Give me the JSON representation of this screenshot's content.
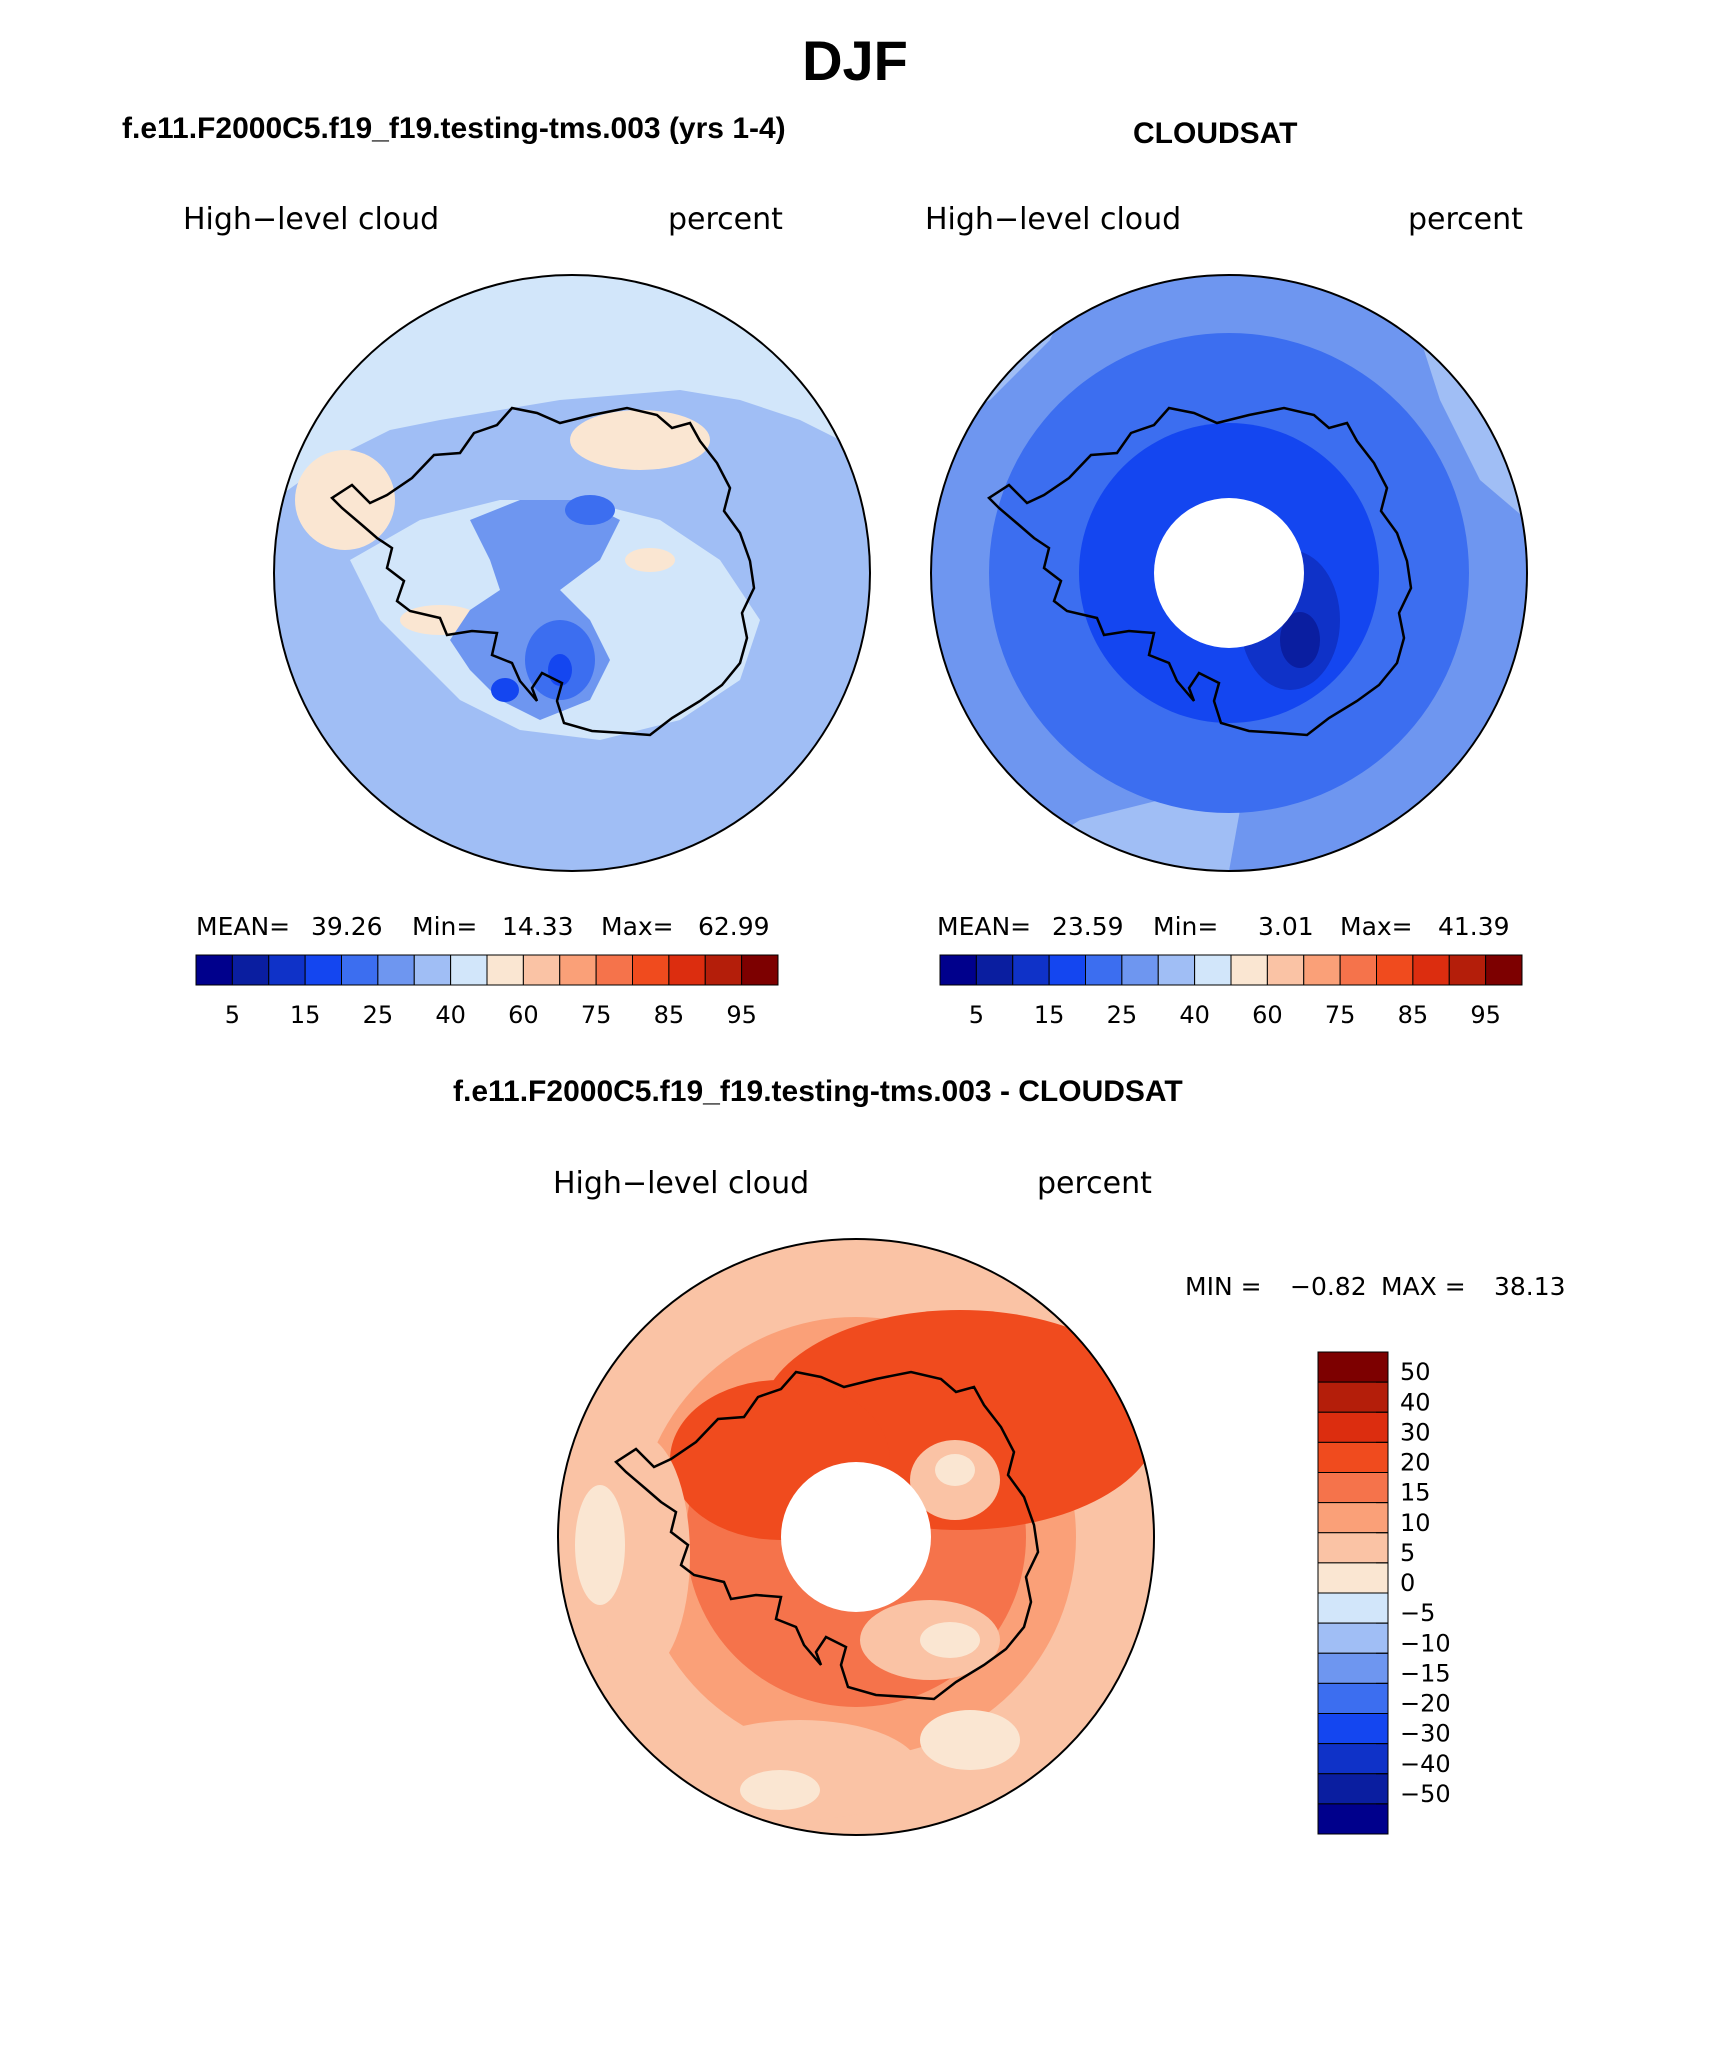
{
  "title": "DJF",
  "panels": [
    {
      "case_name": "f.e11.F2000C5.f19_f19.testing-tms.003 (yrs 1-4)",
      "variable": "High−level cloud",
      "units": "percent",
      "stats": {
        "mean_label": "MEAN=",
        "mean": "39.26",
        "min_label": "Min=",
        "min": "14.33",
        "max_label": "Max=",
        "max": "62.99"
      }
    },
    {
      "case_name": "CLOUDSAT",
      "variable": "High−level cloud",
      "units": "percent",
      "stats": {
        "mean_label": "MEAN=",
        "mean": "23.59",
        "min_label": "Min=",
        "min": "3.01",
        "max_label": "Max=",
        "max": "41.39"
      }
    }
  ],
  "abs_colorbar": {
    "colors": [
      "#00008c",
      "#0a1ea0",
      "#0f32c8",
      "#1446f0",
      "#3c6ef0",
      "#6e96f0",
      "#a0bef5",
      "#d2e6fa",
      "#fae6d2",
      "#fac3a5",
      "#faa078",
      "#f5734b",
      "#f04b1e",
      "#dc2d0f",
      "#b41e0a",
      "#7d0000"
    ],
    "tick_labels": [
      "5",
      "15",
      "25",
      "40",
      "60",
      "75",
      "85",
      "95"
    ]
  },
  "diff_panel": {
    "title": "f.e11.F2000C5.f19_f19.testing-tms.003 - CLOUDSAT",
    "variable": "High−level cloud",
    "units": "percent",
    "stats": {
      "min_label": "MIN =",
      "min": "−0.82",
      "max_label": "MAX =",
      "max": "38.13"
    }
  },
  "diff_colorbar": {
    "colors": [
      "#7d0000",
      "#b41e0a",
      "#dc2d0f",
      "#f04b1e",
      "#f5734b",
      "#faa078",
      "#fac3a5",
      "#fae6d2",
      "#d2e6fa",
      "#a0bef5",
      "#6e96f0",
      "#3c6ef0",
      "#1446f0",
      "#0f32c8",
      "#0a1ea0",
      "#00008c"
    ],
    "tick_labels": [
      "50",
      "40",
      "30",
      "20",
      "15",
      "10",
      "5",
      "0",
      "−5",
      "−10",
      "−15",
      "−20",
      "−30",
      "−40",
      "−50"
    ]
  },
  "chart_data": [
    {
      "type": "heatmap",
      "title": "f.e11.F2000C5.f19_f19.testing-tms.003 (yrs 1-4)",
      "variable": "High−level cloud",
      "units": "percent",
      "projection": "south polar stereographic",
      "mean": 39.26,
      "min": 14.33,
      "max": 62.99,
      "levels": [
        5,
        10,
        15,
        20,
        25,
        30,
        40,
        50,
        60,
        70,
        75,
        80,
        85,
        90,
        95
      ]
    },
    {
      "type": "heatmap",
      "title": "CLOUDSAT",
      "variable": "High−level cloud",
      "units": "percent",
      "projection": "south polar stereographic",
      "mean": 23.59,
      "min": 3.01,
      "max": 41.39,
      "levels": [
        5,
        10,
        15,
        20,
        25,
        30,
        40,
        50,
        60,
        70,
        75,
        80,
        85,
        90,
        95
      ],
      "missing_polar_cap": true
    },
    {
      "type": "heatmap",
      "title": "f.e11.F2000C5.f19_f19.testing-tms.003 - CLOUDSAT",
      "variable": "High−level cloud",
      "units": "percent",
      "projection": "south polar stereographic",
      "min": -0.82,
      "max": 38.13,
      "levels": [
        -50,
        -40,
        -30,
        -20,
        -15,
        -10,
        -5,
        0,
        5,
        10,
        15,
        20,
        30,
        40,
        50
      ],
      "missing_polar_cap": true
    }
  ]
}
